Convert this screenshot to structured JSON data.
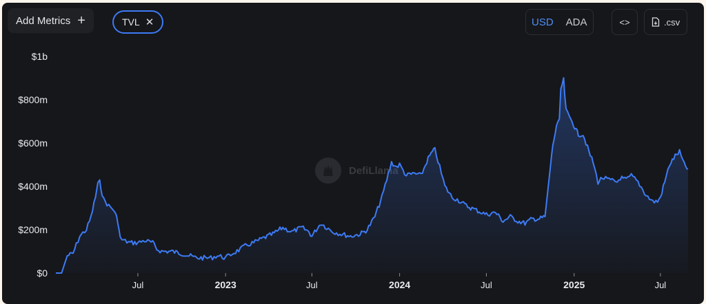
{
  "toolbar": {
    "add_metrics_label": "Add Metrics",
    "add_icon": "+",
    "metric_chip_label": "TVL",
    "remove_icon": "✕",
    "currency_options": [
      "USD",
      "ADA"
    ],
    "selected_currency": "USD",
    "embed_icon": "<>",
    "csv_label": ".csv"
  },
  "watermark": "DefiLlama",
  "colors": {
    "background": "#16171b",
    "line": "#3d7bf5",
    "accent": "#4f8ff7",
    "text": "#e9ebee"
  },
  "chart_data": {
    "type": "area",
    "title": "",
    "xlabel": "",
    "ylabel": "",
    "ylim": [
      0,
      1000000000
    ],
    "y_ticks": [
      0,
      200000000,
      400000000,
      600000000,
      800000000,
      1000000000
    ],
    "y_tick_labels": [
      "$0",
      "$200m",
      "$400m",
      "$600m",
      "$800m",
      "$1b"
    ],
    "x_ticks": [
      "2022-07-01",
      "2023-01-01",
      "2023-07-01",
      "2024-01-01",
      "2024-07-01",
      "2025-01-01",
      "2025-07-01"
    ],
    "x_tick_labels": [
      "Jul",
      "2023",
      "Jul",
      "2024",
      "Jul",
      "2025",
      "Jul"
    ],
    "grid": false,
    "legend": "none",
    "series": [
      {
        "x": [
          "2022-01-10",
          "2022-01-22",
          "2022-02-03",
          "2022-02-15",
          "2022-03-01",
          "2022-03-15",
          "2022-03-25",
          "2022-04-03",
          "2022-04-08",
          "2022-04-12",
          "2022-04-20",
          "2022-05-01",
          "2022-05-12",
          "2022-05-20",
          "2022-05-25",
          "2022-06-01",
          "2022-06-15",
          "2022-07-01",
          "2022-07-15",
          "2022-08-01",
          "2022-08-10",
          "2022-08-20",
          "2022-09-10",
          "2022-10-01",
          "2022-11-01",
          "2022-11-20",
          "2022-12-01",
          "2022-12-15",
          "2023-01-01",
          "2023-01-15",
          "2023-02-01",
          "2023-02-15",
          "2023-03-01",
          "2023-03-20",
          "2023-04-10",
          "2023-05-01",
          "2023-05-20",
          "2023-06-10",
          "2023-06-25",
          "2023-07-01",
          "2023-07-10",
          "2023-07-20",
          "2023-08-01",
          "2023-08-15",
          "2023-09-01",
          "2023-09-20",
          "2023-10-10",
          "2023-10-25",
          "2023-11-10",
          "2023-11-25",
          "2023-12-05",
          "2023-12-15",
          "2023-12-25",
          "2024-01-01",
          "2024-01-15",
          "2024-02-01",
          "2024-02-15",
          "2024-03-01",
          "2024-03-10",
          "2024-03-15",
          "2024-03-25",
          "2024-04-05",
          "2024-04-20",
          "2024-05-01",
          "2024-05-20",
          "2024-06-10",
          "2024-07-01",
          "2024-07-20",
          "2024-08-05",
          "2024-08-20",
          "2024-09-05",
          "2024-09-20",
          "2024-10-05",
          "2024-10-20",
          "2024-11-01",
          "2024-11-08",
          "2024-11-15",
          "2024-11-20",
          "2024-11-25",
          "2024-12-01",
          "2024-12-04",
          "2024-12-10",
          "2024-12-15",
          "2024-12-22",
          "2024-12-28",
          "2025-01-05",
          "2025-01-10",
          "2025-01-20",
          "2025-02-01",
          "2025-02-10",
          "2025-02-20",
          "2025-03-01",
          "2025-03-15",
          "2025-04-01",
          "2025-04-08",
          "2025-04-20",
          "2025-05-01",
          "2025-05-15",
          "2025-06-01",
          "2025-06-15",
          "2025-06-25",
          "2025-07-01",
          "2025-07-10",
          "2025-07-20",
          "2025-08-01",
          "2025-08-10",
          "2025-08-20",
          "2025-08-28"
        ],
        "y": [
          0,
          0,
          80000000,
          90000000,
          170000000,
          200000000,
          260000000,
          350000000,
          410000000,
          420000000,
          340000000,
          310000000,
          290000000,
          240000000,
          160000000,
          150000000,
          140000000,
          140000000,
          150000000,
          140000000,
          110000000,
          100000000,
          100000000,
          90000000,
          70000000,
          70000000,
          70000000,
          80000000,
          70000000,
          90000000,
          110000000,
          130000000,
          140000000,
          160000000,
          180000000,
          210000000,
          190000000,
          210000000,
          190000000,
          170000000,
          200000000,
          230000000,
          210000000,
          190000000,
          180000000,
          170000000,
          180000000,
          200000000,
          260000000,
          350000000,
          430000000,
          510000000,
          490000000,
          500000000,
          450000000,
          460000000,
          450000000,
          530000000,
          560000000,
          570000000,
          490000000,
          400000000,
          350000000,
          340000000,
          310000000,
          290000000,
          270000000,
          280000000,
          240000000,
          260000000,
          240000000,
          230000000,
          250000000,
          250000000,
          260000000,
          400000000,
          550000000,
          620000000,
          680000000,
          700000000,
          850000000,
          890000000,
          750000000,
          720000000,
          700000000,
          660000000,
          640000000,
          640000000,
          560000000,
          510000000,
          420000000,
          440000000,
          430000000,
          420000000,
          440000000,
          430000000,
          450000000,
          420000000,
          360000000,
          330000000,
          330000000,
          350000000,
          420000000,
          500000000,
          540000000,
          560000000,
          500000000,
          480000000
        ]
      }
    ]
  }
}
